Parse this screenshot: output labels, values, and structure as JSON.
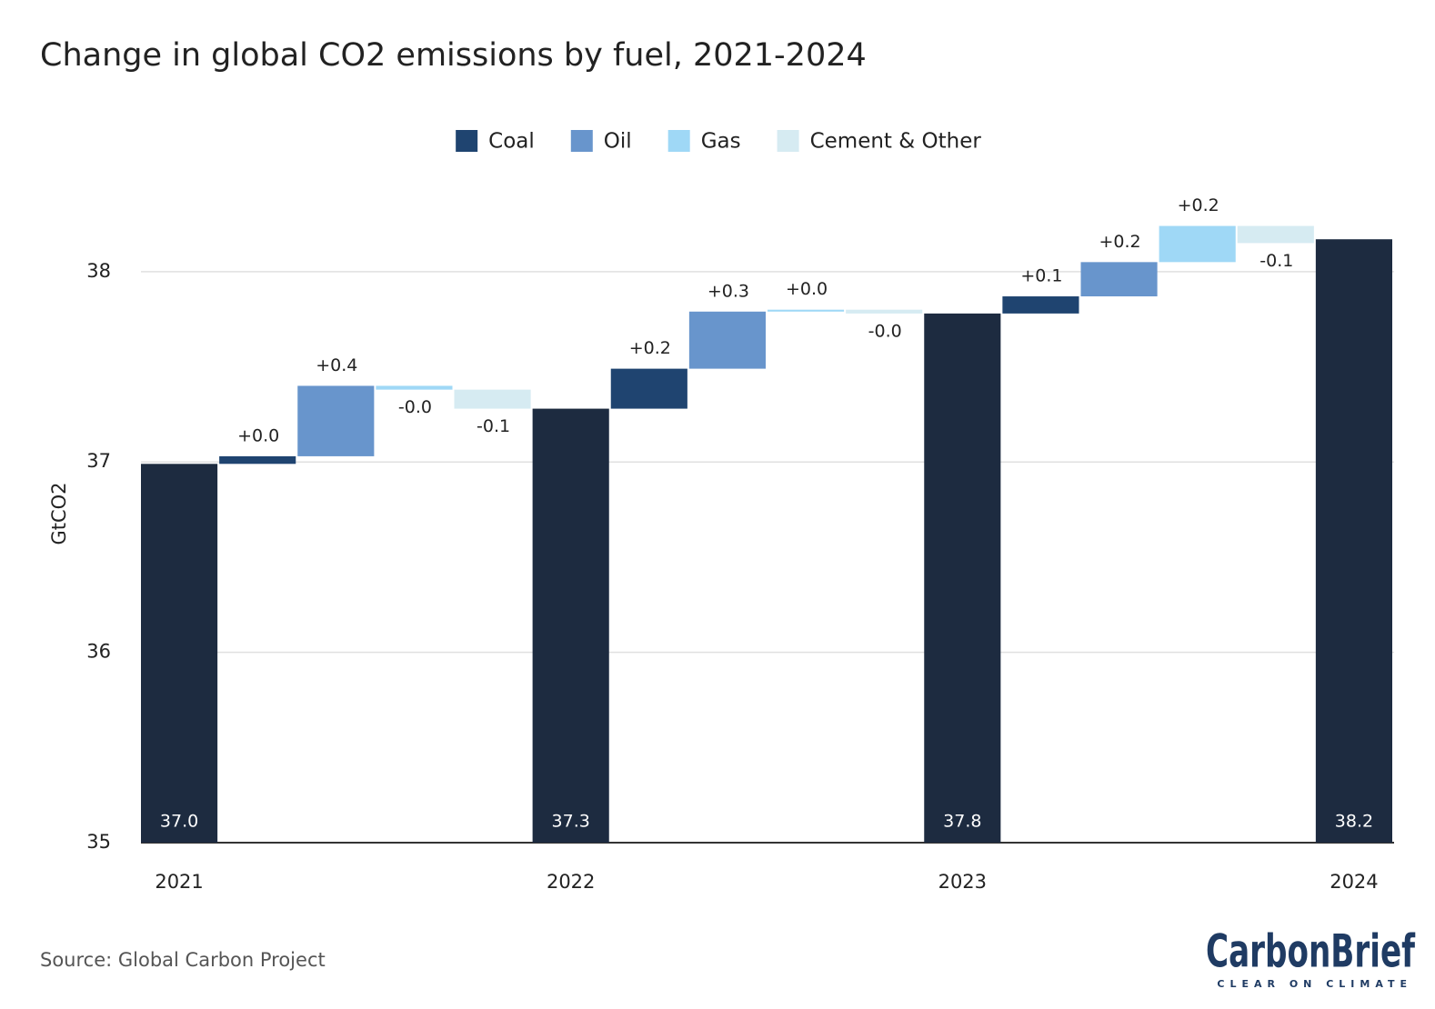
{
  "chart_data": {
    "type": "waterfall",
    "title": "Change in global CO2 emissions by fuel, 2021-2024",
    "y_label": "GtCO2",
    "categories": [
      "2021",
      "2022",
      "2023",
      "2024"
    ],
    "totals": {
      "color": "#1d2b40",
      "values": [
        36.99,
        37.28,
        37.78,
        38.17
      ],
      "value_labels": [
        "37.0",
        "37.3",
        "37.8",
        "38.2"
      ]
    },
    "series": [
      {
        "name": "Coal",
        "color": "#1f4470",
        "values": [
          0.04,
          0.21,
          0.09,
          null
        ],
        "value_labels": [
          "+0.0",
          "+0.2",
          "+0.1",
          null
        ]
      },
      {
        "name": "Oil",
        "color": "#6895cc",
        "values": [
          0.37,
          0.3,
          0.18,
          null
        ],
        "value_labels": [
          "+0.4",
          "+0.3",
          "+0.2",
          null
        ]
      },
      {
        "name": "Gas",
        "color": "#9fd8f6",
        "values": [
          -0.02,
          0.01,
          0.19,
          null
        ],
        "value_labels": [
          "-0.0",
          "+0.0",
          "+0.2",
          null
        ]
      },
      {
        "name": "Cement & Other",
        "color": "#d6ebf2",
        "values": [
          -0.1,
          -0.02,
          -0.09,
          null
        ],
        "value_labels": [
          "-0.1",
          "-0.0",
          "-0.1",
          null
        ]
      }
    ],
    "ylim": [
      35,
      38.3
    ],
    "yticks": [
      35,
      36,
      37,
      38
    ],
    "grid": true,
    "legend": "top",
    "source": "Source: Global Carbon Project",
    "logo": {
      "name": "CarbonBrief",
      "tagline": "CLEAR ON CLIMATE"
    }
  }
}
